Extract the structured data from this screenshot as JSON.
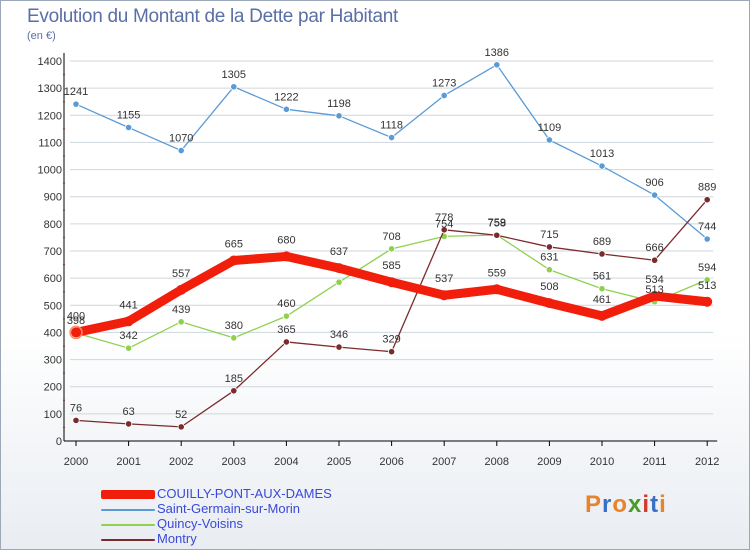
{
  "header": {
    "title": "Evolution du Montant de la Dette par Habitant",
    "subtitle": "(en €)"
  },
  "logo": {
    "letters": [
      "P",
      "r",
      "o",
      "x",
      "i",
      "t",
      "i"
    ],
    "colors": [
      "#e8832a",
      "#3a6fc7",
      "#e8832a",
      "#4a9a2a",
      "#d23a2a",
      "#3a6fc7",
      "#e8832a"
    ]
  },
  "colors": {
    "gridline": "#cfd6de",
    "axis": "#000000",
    "tick_text": "#333333",
    "value_text": "#333333",
    "legend_text": "#3b49d6"
  },
  "chart_data": {
    "type": "line",
    "title": "Evolution du Montant de la Dette par Habitant",
    "subtitle": "(en €)",
    "xlabel": "",
    "ylabel": "",
    "x": [
      "2000",
      "2001",
      "2002",
      "2003",
      "2004",
      "2005",
      "2006",
      "2007",
      "2008",
      "2009",
      "2010",
      "2011",
      "2012"
    ],
    "ylim": [
      0,
      1400
    ],
    "yticks": [
      0,
      100,
      200,
      300,
      400,
      500,
      600,
      700,
      800,
      900,
      1000,
      1100,
      1200,
      1300,
      1400
    ],
    "grid": "horizontal",
    "legend": "bottom-left",
    "series": [
      {
        "name": "COUILLY-PONT-AUX-DAMES",
        "color": "#f21e0c",
        "emphasis": true,
        "values": [
          400,
          441,
          557,
          665,
          680,
          637,
          585,
          537,
          559,
          508,
          461,
          534,
          513
        ],
        "labels": [
          "400",
          "441",
          "557",
          "665",
          "680",
          "637",
          "585",
          "537",
          "559",
          "508",
          "461",
          "534",
          "513"
        ]
      },
      {
        "name": "Saint-Germain-sur-Morin",
        "color": "#5b9bd5",
        "emphasis": false,
        "values": [
          1241,
          1155,
          1070,
          1305,
          1222,
          1198,
          1118,
          1273,
          1386,
          1109,
          1013,
          906,
          744
        ],
        "labels": [
          "1241",
          "1155",
          "1070",
          "1305",
          "1222",
          "1198",
          "1118",
          "1273",
          "1386",
          "1109",
          "1013",
          "906",
          "744"
        ]
      },
      {
        "name": "Quincy-Voisins",
        "color": "#8fd14f",
        "emphasis": false,
        "values": [
          398,
          342,
          439,
          380,
          460,
          585,
          708,
          754,
          759,
          631,
          561,
          513,
          594
        ],
        "labels": [
          "398",
          "342",
          "439",
          "380",
          "460",
          "",
          "708",
          "754",
          "759",
          "631",
          "561",
          "513",
          "594"
        ]
      },
      {
        "name": "Montry",
        "color": "#7b2b2b",
        "emphasis": false,
        "values": [
          76,
          63,
          52,
          185,
          365,
          346,
          329,
          778,
          758,
          715,
          689,
          666,
          889
        ],
        "labels": [
          "76",
          "63",
          "52",
          "185",
          "365",
          "346",
          "329",
          "778",
          "758",
          "715",
          "689",
          "666",
          "889"
        ]
      }
    ]
  }
}
